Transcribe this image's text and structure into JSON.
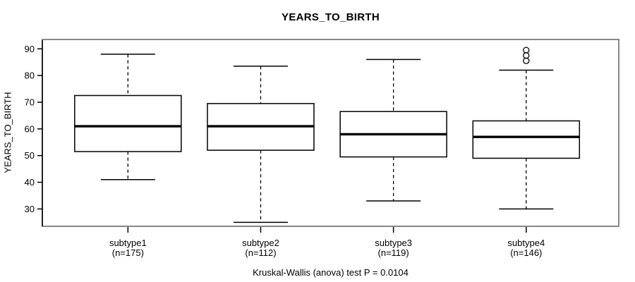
{
  "figure": {
    "title": "YEARS_TO_BIRTH",
    "y_axis_label": "YEARS_TO_BIRTH",
    "caption": "Kruskal-Wallis (anova) test P = 0.0104"
  },
  "colors": {
    "frame": "#878787",
    "axis": "#000000",
    "box_stroke": "#000000",
    "box_fill": "#ffffff",
    "median": "#000000",
    "outlier_stroke": "#000000",
    "background": "#ffffff",
    "text": "#000000"
  },
  "chart_data": {
    "type": "boxplot",
    "title": "YEARS_TO_BIRTH",
    "ylabel": "YEARS_TO_BIRTH",
    "xlabel": "",
    "caption": "Kruskal-Wallis (anova) test P = 0.0104",
    "ylim": [
      23.5,
      93.5
    ],
    "yticks": [
      30,
      40,
      50,
      60,
      70,
      80,
      90
    ],
    "grid": false,
    "legend": null,
    "groups": [
      {
        "label": "subtype1",
        "n": 175,
        "n_label": "(n=175)",
        "whisker_low": 41,
        "q1": 51.5,
        "median": 61,
        "q3": 72.5,
        "whisker_high": 88,
        "outliers": []
      },
      {
        "label": "subtype2",
        "n": 112,
        "n_label": "(n=112)",
        "whisker_low": 25,
        "q1": 52,
        "median": 61,
        "q3": 69.5,
        "whisker_high": 83.5,
        "outliers": []
      },
      {
        "label": "subtype3",
        "n": 119,
        "n_label": "(n=119)",
        "whisker_low": 33,
        "q1": 49.5,
        "median": 58,
        "q3": 66.5,
        "whisker_high": 86,
        "outliers": []
      },
      {
        "label": "subtype4",
        "n": 146,
        "n_label": "(n=146)",
        "whisker_low": 30,
        "q1": 49,
        "median": 57,
        "q3": 63,
        "whisker_high": 82,
        "outliers": [
          85.5,
          87.5,
          89.5
        ]
      }
    ]
  }
}
